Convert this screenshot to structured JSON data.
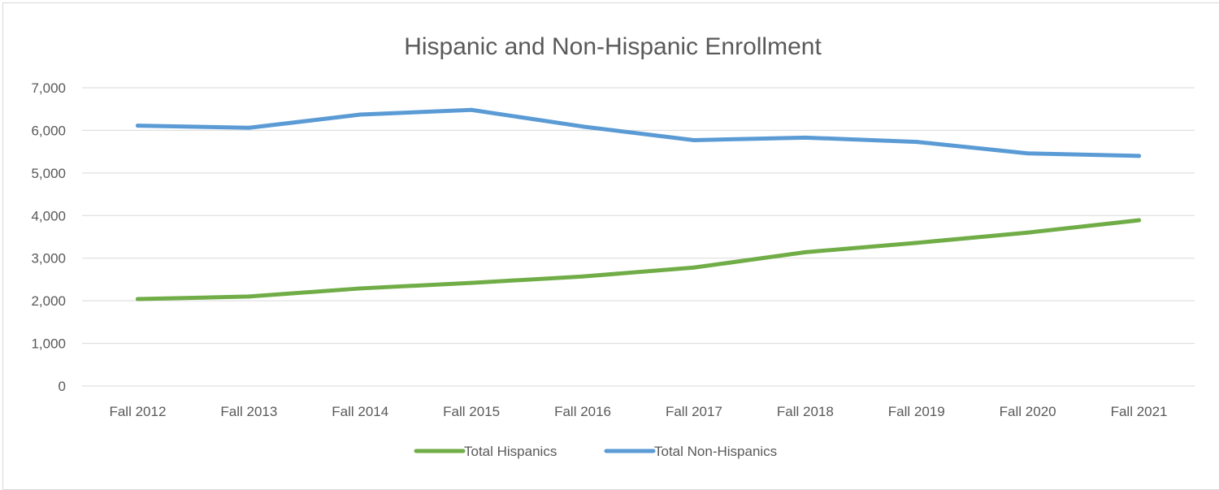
{
  "chart_data": {
    "type": "line",
    "title": "Hispanic and Non-Hispanic Enrollment",
    "xlabel": "",
    "ylabel": "",
    "categories": [
      "Fall 2012",
      "Fall 2013",
      "Fall 2014",
      "Fall 2015",
      "Fall 2016",
      "Fall 2017",
      "Fall 2018",
      "Fall 2019",
      "Fall 2020",
      "Fall 2021"
    ],
    "ylim": [
      0,
      7000
    ],
    "y_ticks": [
      "0",
      "1,000",
      "2,000",
      "3,000",
      "4,000",
      "5,000",
      "6,000",
      "7,000"
    ],
    "grid": true,
    "legend_position": "bottom",
    "series": [
      {
        "name": "Total Hispanics",
        "color": "#70ad47",
        "values": [
          2040,
          2100,
          2290,
          2420,
          2570,
          2780,
          3140,
          3360,
          3600,
          3890
        ]
      },
      {
        "name": "Total Non-Hispanics",
        "color": "#5b9bd5",
        "values": [
          6110,
          6060,
          6370,
          6480,
          6090,
          5770,
          5830,
          5730,
          5460,
          5400
        ]
      }
    ]
  }
}
